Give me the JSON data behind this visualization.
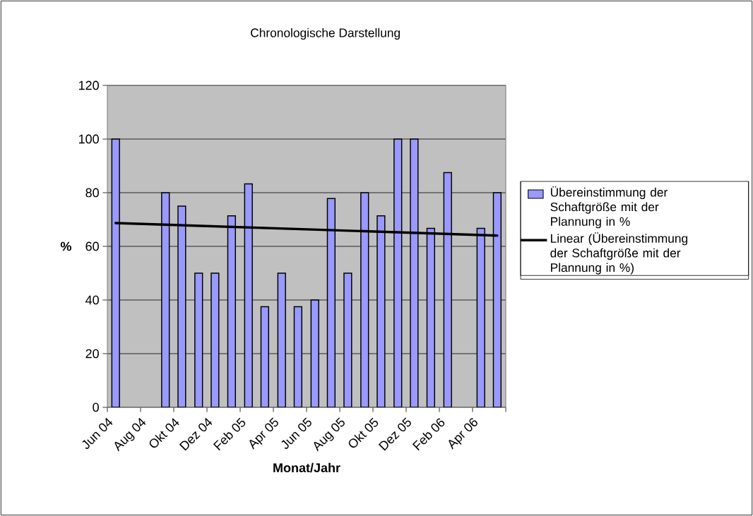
{
  "chart_data": {
    "type": "bar",
    "title": "Chronologische Darstellung",
    "xlabel": "Monat/Jahr",
    "ylabel": "%",
    "x": [
      "2004-06-16",
      "2004-07-16",
      "2004-08-16",
      "2004-09-16",
      "2004-10-16",
      "2004-11-16",
      "2004-12-16",
      "2005-01-16",
      "2005-02-15",
      "2005-03-16",
      "2005-04-16",
      "2005-05-16",
      "2005-06-16",
      "2005-07-16",
      "2005-08-16",
      "2005-09-16",
      "2005-10-16",
      "2005-11-16",
      "2005-12-16",
      "2006-01-16",
      "2006-02-15",
      "2006-03-16",
      "2006-04-16",
      "2006-05-16"
    ],
    "series": [
      {
        "name": "Übereinstimmung der Schaftgröße mit der Plannung in %",
        "color": "#9999ff",
        "values": [
          100,
          null,
          null,
          80,
          75,
          50,
          50,
          71.4,
          83.3,
          37.5,
          50,
          37.5,
          40,
          77.8,
          50,
          80,
          71.4,
          100,
          100,
          66.7,
          87.5,
          null,
          66.7,
          80
        ]
      },
      {
        "name": "Linear (Übereinstimmung der Schaftgröße mit der Plannung in %)",
        "type": "line",
        "color": "#000000",
        "x": [
          "2004-06-16",
          "2006-05-16"
        ],
        "values": [
          68.7,
          64.0
        ]
      }
    ],
    "xlim": [
      "2004-06-01",
      "2006-06-01"
    ],
    "xticks": [
      {
        "value": "2004-06-01",
        "label": "Jun 04"
      },
      {
        "value": "2004-08-01",
        "label": "Aug 04"
      },
      {
        "value": "2004-10-01",
        "label": "Okt 04"
      },
      {
        "value": "2004-12-01",
        "label": "Dez 04"
      },
      {
        "value": "2005-02-01",
        "label": "Feb 05"
      },
      {
        "value": "2005-04-01",
        "label": "Apr 05"
      },
      {
        "value": "2005-06-01",
        "label": "Jun 05"
      },
      {
        "value": "2005-08-01",
        "label": "Aug 05"
      },
      {
        "value": "2005-10-01",
        "label": "Okt 05"
      },
      {
        "value": "2005-12-01",
        "label": "Dez 05"
      },
      {
        "value": "2006-02-01",
        "label": "Feb 06"
      },
      {
        "value": "2006-04-01",
        "label": "Apr 06"
      },
      {
        "value": "2006-06-01",
        "label": null
      }
    ],
    "ylim": [
      0,
      120
    ],
    "yticks": [
      0,
      20,
      40,
      60,
      80,
      100,
      120
    ],
    "grid": "y",
    "legend": "right"
  }
}
